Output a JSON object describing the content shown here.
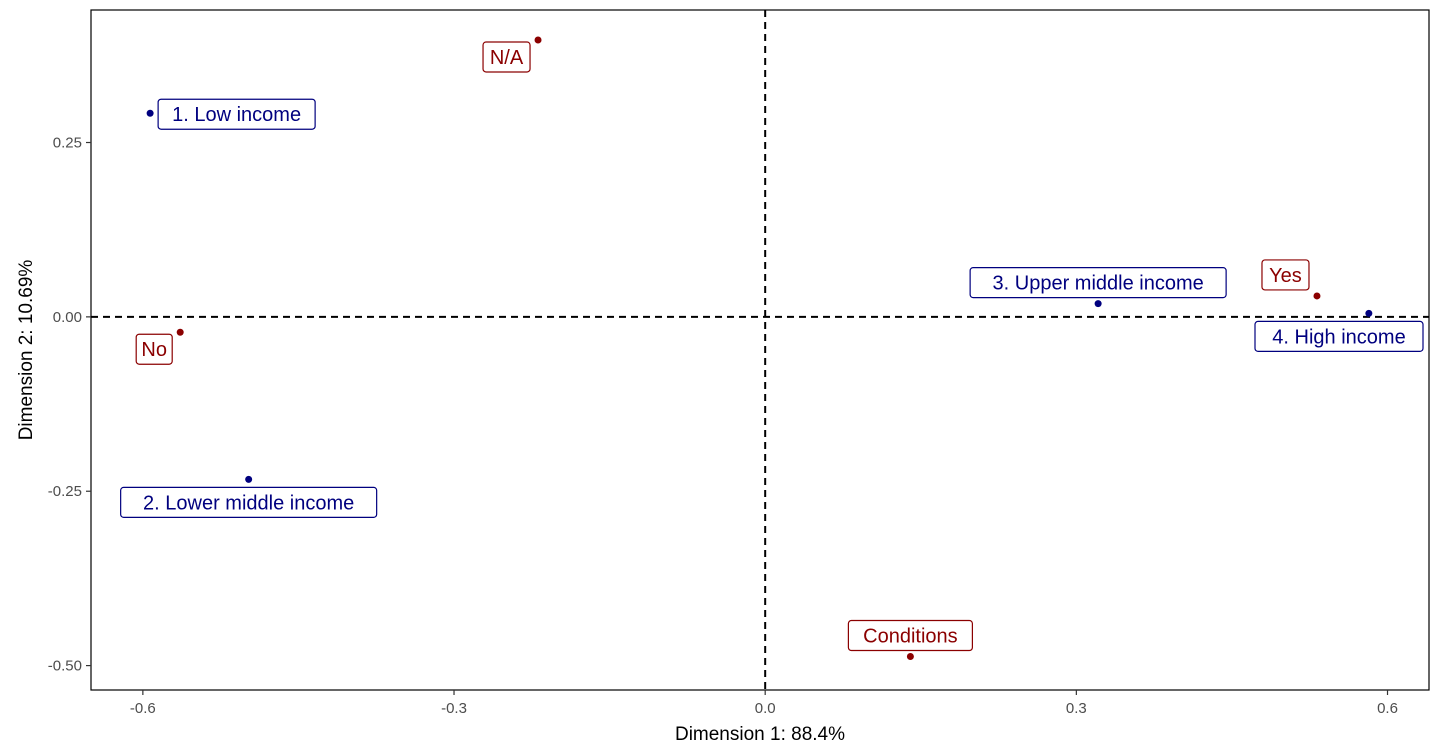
{
  "chart_data": {
    "type": "scatter",
    "title": "",
    "xlabel": "Dimension 1: 88.4%",
    "ylabel": "Dimension 2: 10.69%",
    "xlim": [
      -0.65,
      0.64
    ],
    "ylim": [
      -0.535,
      0.44
    ],
    "x_ticks": [
      -0.6,
      -0.3,
      0.0,
      0.3,
      0.6
    ],
    "x_tick_labels": [
      "-0.6",
      "-0.3",
      "0.0",
      "0.3",
      "0.6"
    ],
    "y_ticks": [
      0.25,
      0.0,
      -0.25,
      -0.5
    ],
    "y_tick_labels": [
      "0.25",
      "0.00",
      "-0.25",
      "-0.50"
    ],
    "reference_lines": {
      "x": 0,
      "y": 0,
      "style": "dashed"
    },
    "grid": false,
    "colors": {
      "income": "#00007f",
      "response": "#8b0000"
    },
    "points": [
      {
        "label": "1. Low income",
        "x": -0.593,
        "y": 0.292,
        "group": "income",
        "label_pos": "right"
      },
      {
        "label": "2. Lower middle income",
        "x": -0.498,
        "y": -0.233,
        "group": "income",
        "label_pos": "below"
      },
      {
        "label": "3. Upper middle income",
        "x": 0.321,
        "y": 0.019,
        "group": "income",
        "label_pos": "above"
      },
      {
        "label": "4. High income",
        "x": 0.582,
        "y": 0.005,
        "group": "income",
        "label_pos": "below"
      },
      {
        "label": "N/A",
        "x": -0.219,
        "y": 0.397,
        "group": "response",
        "label_pos": "below-left"
      },
      {
        "label": "No",
        "x": -0.564,
        "y": -0.022,
        "group": "response",
        "label_pos": "below-left"
      },
      {
        "label": "Yes",
        "x": 0.532,
        "y": 0.03,
        "group": "response",
        "label_pos": "above-left"
      },
      {
        "label": "Conditions",
        "x": 0.14,
        "y": -0.487,
        "group": "response",
        "label_pos": "above"
      }
    ]
  }
}
